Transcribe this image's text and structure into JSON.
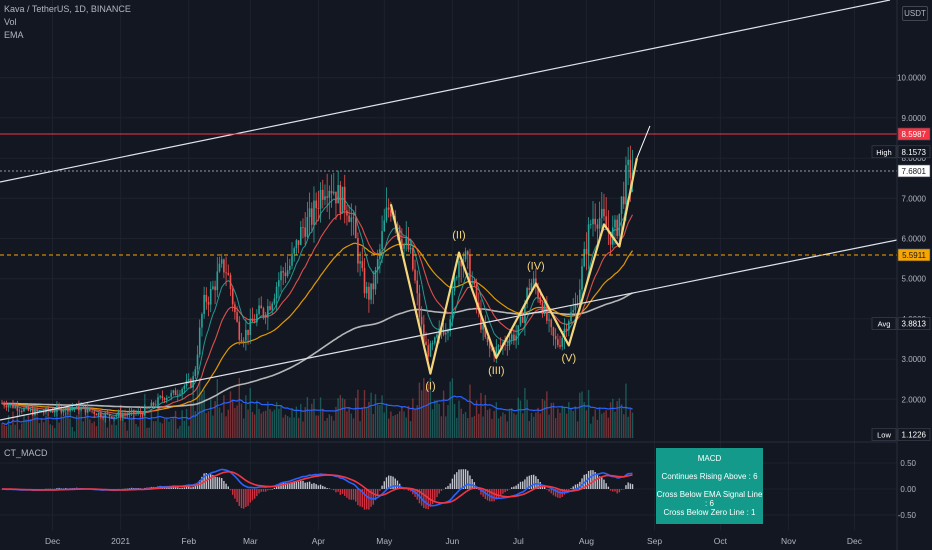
{
  "header": {
    "symbol": "Kava / TetherUS, 1D, BINANCE",
    "vol_label": "Vol",
    "ema_label": "EMA",
    "currency": "USDT"
  },
  "macd_pane": {
    "title": "CT_MACD",
    "box_title": "MACD",
    "box_lines": [
      "Continues Rising Above : 6",
      "Cross Below EMA Signal Line : 6",
      "Cross Below Zero Line : 1"
    ]
  },
  "price_tags": [
    {
      "label": "",
      "value": "8.5987",
      "price": 8.5987,
      "color": "#f23645",
      "text_color": "#ffffff"
    },
    {
      "label": "High",
      "value": "8.1573",
      "price": 8.1573,
      "color": "#131722",
      "text_color": "#ffffff"
    },
    {
      "label": "",
      "value": "7.6801",
      "price": 7.6801,
      "color": "#ffffff",
      "text_color": "#131722"
    },
    {
      "label": "",
      "value": "5.5911",
      "price": 5.5911,
      "color": "#f7a600",
      "text_color": "#131722"
    },
    {
      "label": "Avg",
      "value": "3.8813",
      "price": 3.8813,
      "color": "#131722",
      "text_color": "#ffffff"
    },
    {
      "label": "Low",
      "value": "1.1226",
      "price": 1.1226,
      "color": "#131722",
      "text_color": "#ffffff"
    }
  ],
  "colors": {
    "background": "#131722",
    "grid": "#1e222d",
    "up": "#26a69a",
    "down": "#ef5350",
    "wave": "#f5d67a",
    "channel": "#e0e3eb",
    "ema_white": "#c8c8c8",
    "ema_orange": "#f7a600",
    "ema_red": "#f05650",
    "ema_teal": "#26a69a",
    "vol_ma": "#2962ff",
    "macd_line": "#2962ff",
    "signal_line": "#f23645"
  },
  "chart_data": {
    "type": "candlestick",
    "price_axis": {
      "ticks": [
        {
          "label": "2.0000",
          "value": 2
        },
        {
          "label": "3.0000",
          "value": 3
        },
        {
          "label": "4.0000",
          "value": 4
        },
        {
          "label": "5.0000",
          "value": 5
        },
        {
          "label": "6.0000",
          "value": 6
        },
        {
          "label": "7.0000",
          "value": 7
        },
        {
          "label": "8.0000",
          "value": 8
        },
        {
          "label": "9.0000",
          "value": 9
        },
        {
          "label": "10.0000",
          "value": 10
        }
      ],
      "range": [
        1.0,
        11.0
      ]
    },
    "time_axis": {
      "ticks": [
        "Dec",
        "2021",
        "Feb",
        "Mar",
        "Apr",
        "May",
        "Jun",
        "Jul",
        "Aug",
        "Sep",
        "Oct",
        "Nov",
        "Dec"
      ]
    },
    "price_path": [
      {
        "date": "2020-11-08",
        "price": 1.9
      },
      {
        "date": "2020-11-25",
        "price": 1.68
      },
      {
        "date": "2020-12-12",
        "price": 1.8
      },
      {
        "date": "2020-12-28",
        "price": 1.6
      },
      {
        "date": "2021-01-10",
        "price": 1.65
      },
      {
        "date": "2021-01-24",
        "price": 2.1
      },
      {
        "date": "2021-02-03",
        "price": 2.4
      },
      {
        "date": "2021-02-10",
        "price": 4.5
      },
      {
        "date": "2021-02-18",
        "price": 5.3
      },
      {
        "date": "2021-02-26",
        "price": 3.6
      },
      {
        "date": "2021-03-08",
        "price": 4.2
      },
      {
        "date": "2021-03-18",
        "price": 5.2
      },
      {
        "date": "2021-03-28",
        "price": 6.4
      },
      {
        "date": "2021-04-06",
        "price": 7.4
      },
      {
        "date": "2021-04-14",
        "price": 6.9
      },
      {
        "date": "2021-04-25",
        "price": 4.6
      },
      {
        "date": "2021-05-05",
        "price": 6.8
      },
      {
        "date": "2021-05-12",
        "price": 5.8
      },
      {
        "date": "2021-05-22",
        "price": 3.2
      },
      {
        "date": "2021-05-30",
        "price": 3.8
      },
      {
        "date": "2021-06-06",
        "price": 5.6
      },
      {
        "date": "2021-06-20",
        "price": 3.2
      },
      {
        "date": "2021-07-01",
        "price": 3.6
      },
      {
        "date": "2021-07-08",
        "price": 4.9
      },
      {
        "date": "2021-07-20",
        "price": 3.4
      },
      {
        "date": "2021-07-26",
        "price": 4.1
      },
      {
        "date": "2021-08-06",
        "price": 6.6
      },
      {
        "date": "2021-08-14",
        "price": 6.1
      },
      {
        "date": "2021-08-22",
        "price": 7.7
      }
    ],
    "wave_labels": [
      {
        "label": "(I)",
        "date": "2021-05-22",
        "price": 2.64
      },
      {
        "label": "(II)",
        "date": "2021-06-04",
        "price": 5.65
      },
      {
        "label": "(III)",
        "date": "2021-06-21",
        "price": 3.03
      },
      {
        "label": "(IV)",
        "date": "2021-07-09",
        "price": 4.88
      },
      {
        "label": "(V)",
        "date": "2021-07-24",
        "price": 3.34
      }
    ],
    "wave_path": [
      {
        "date": "2021-05-04",
        "price": 6.85
      },
      {
        "date": "2021-05-22",
        "price": 2.64
      },
      {
        "date": "2021-06-04",
        "price": 5.65
      },
      {
        "date": "2021-06-21",
        "price": 3.03
      },
      {
        "date": "2021-07-09",
        "price": 4.88
      },
      {
        "date": "2021-07-24",
        "price": 3.34
      },
      {
        "date": "2021-08-09",
        "price": 6.35
      },
      {
        "date": "2021-08-16",
        "price": 5.8
      },
      {
        "date": "2021-08-24",
        "price": 8.0
      }
    ],
    "macd_axis": {
      "ticks": [
        {
          "label": "0.50",
          "value": 0.5
        },
        {
          "label": "0.00",
          "value": 0
        },
        {
          "label": "-0.50",
          "value": -0.5
        }
      ],
      "range": [
        -0.9,
        0.8
      ]
    }
  }
}
